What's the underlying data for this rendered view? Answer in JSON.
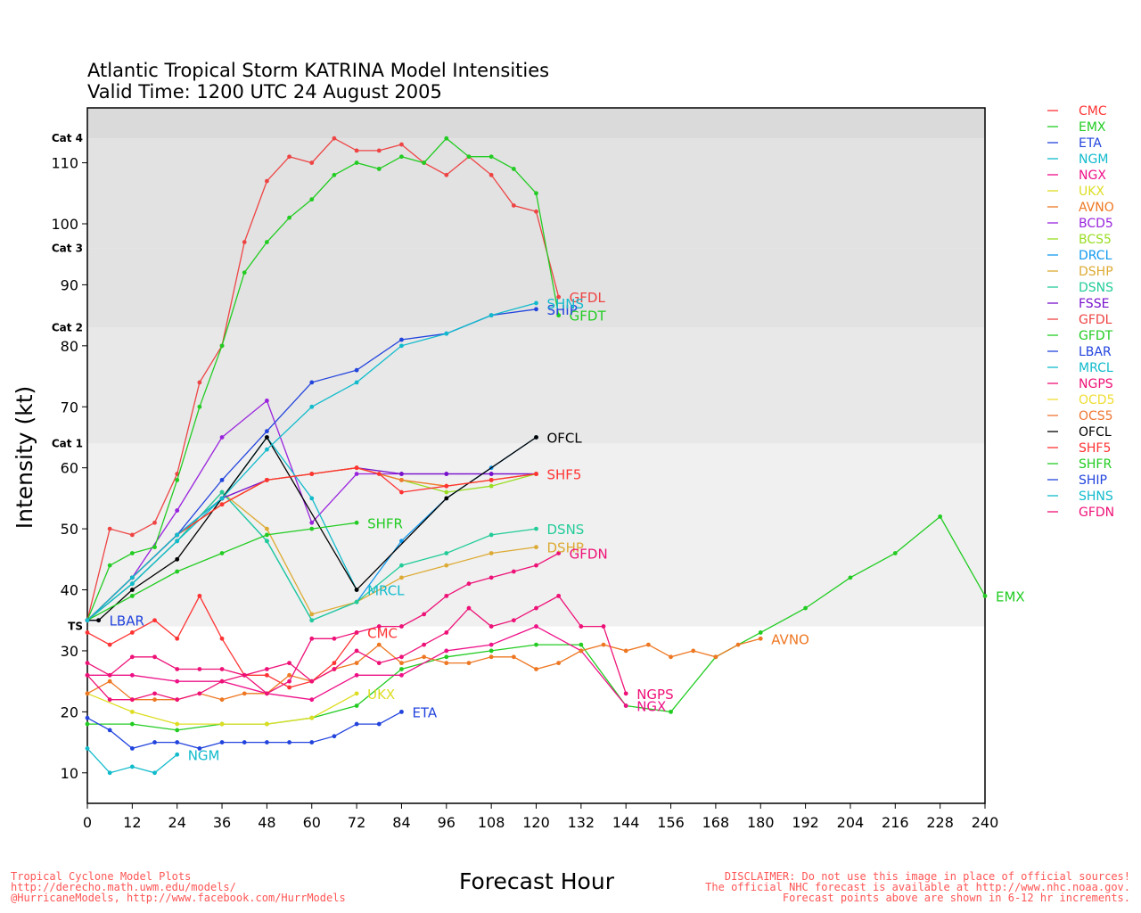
{
  "chart_data": {
    "type": "line",
    "title": "Atlantic Tropical Storm KATRINA Model Intensities",
    "subtitle": "Valid Time: 1200 UTC 24 August 2005",
    "xlabel": "Forecast Hour",
    "ylabel": "Intensity (kt)",
    "xlim": [
      0,
      240
    ],
    "ylim": [
      5,
      119
    ],
    "xticks": [
      0,
      12,
      24,
      36,
      48,
      60,
      72,
      84,
      96,
      108,
      120,
      132,
      144,
      156,
      168,
      180,
      192,
      204,
      216,
      228,
      240
    ],
    "yticks": [
      10,
      20,
      30,
      40,
      50,
      60,
      70,
      80,
      90,
      100,
      110
    ],
    "grid": false,
    "legend_position": "right",
    "categories": [
      {
        "label": "TS",
        "min": 34,
        "max": 64,
        "color": "#f0f0f0"
      },
      {
        "label": "Cat 1",
        "min": 64,
        "max": 83,
        "color": "#e8e8e8"
      },
      {
        "label": "Cat 2",
        "min": 83,
        "max": 96,
        "color": "#e2e2e2"
      },
      {
        "label": "Cat 3",
        "min": 96,
        "max": 114,
        "color": "#e2e2e2"
      },
      {
        "label": "Cat 4",
        "min": 114,
        "max": 119,
        "color": "#dadada"
      }
    ],
    "series": [
      {
        "name": "CMC",
        "color": "#ff3333",
        "x": [
          0,
          6,
          12,
          18,
          24,
          30,
          36,
          42,
          48,
          54,
          60,
          66,
          72
        ],
        "y": [
          33,
          31,
          33,
          35,
          32,
          39,
          32,
          26,
          26,
          24,
          25,
          28,
          33
        ],
        "label": "CMC"
      },
      {
        "name": "EMX",
        "color": "#22cc22",
        "x": [
          0,
          12,
          24,
          36,
          48,
          60,
          72,
          84,
          96,
          108,
          120,
          132,
          144,
          156,
          168,
          180,
          192,
          204,
          216,
          228,
          240
        ],
        "y": [
          18,
          18,
          17,
          18,
          18,
          19,
          21,
          27,
          29,
          30,
          31,
          31,
          21,
          20,
          29,
          33,
          37,
          42,
          46,
          52,
          39
        ],
        "label": "EMX"
      },
      {
        "name": "ETA",
        "color": "#2244dd",
        "x": [
          0,
          6,
          12,
          18,
          24,
          30,
          36,
          42,
          48,
          54,
          60,
          66,
          72,
          78,
          84
        ],
        "y": [
          19,
          17,
          14,
          15,
          15,
          14,
          15,
          15,
          15,
          15,
          15,
          16,
          18,
          18,
          20
        ],
        "label": "ETA"
      },
      {
        "name": "NGM",
        "color": "#11bbcc",
        "x": [
          0,
          6,
          12,
          18,
          24
        ],
        "y": [
          14,
          10,
          11,
          10,
          13
        ],
        "label": "NGM"
      },
      {
        "name": "NGX",
        "color": "#ee1188",
        "x": [
          0,
          12,
          24,
          36,
          48,
          60,
          72,
          84,
          96,
          108,
          120,
          132,
          144
        ],
        "y": [
          26,
          26,
          25,
          25,
          23,
          22,
          26,
          26,
          30,
          31,
          34,
          30,
          21
        ],
        "label": "NGX"
      },
      {
        "name": "UKX",
        "color": "#dddd22",
        "x": [
          0,
          12,
          24,
          36,
          48,
          60,
          72
        ],
        "y": [
          23,
          20,
          18,
          18,
          18,
          19,
          23
        ],
        "label": "UKX"
      },
      {
        "name": "AVNO",
        "color": "#ee7722",
        "x": [
          0,
          6,
          12,
          18,
          24,
          30,
          36,
          42,
          48,
          54,
          60,
          66,
          72,
          78,
          84,
          90,
          96,
          102,
          108,
          114,
          120,
          126,
          132,
          138,
          144,
          150,
          156,
          162,
          168,
          174,
          180
        ],
        "y": [
          23,
          25,
          22,
          22,
          22,
          23,
          22,
          23,
          23,
          26,
          25,
          27,
          28,
          31,
          28,
          29,
          28,
          28,
          29,
          29,
          27,
          28,
          30,
          31,
          30,
          31,
          29,
          30,
          29,
          31,
          32
        ],
        "label": "AVNO"
      },
      {
        "name": "BCD5",
        "color": "#9922dd",
        "x": [
          0,
          12,
          24,
          36,
          48,
          60,
          72,
          84,
          96,
          108,
          120
        ],
        "y": [
          35,
          42,
          53,
          65,
          71,
          51,
          59,
          59,
          59,
          59,
          59
        ],
        "label": ""
      },
      {
        "name": "BCS5",
        "color": "#99dd22",
        "x": [
          0,
          12,
          24,
          36,
          48,
          60,
          72,
          84,
          96,
          108,
          120
        ],
        "y": [
          35,
          42,
          49,
          54,
          58,
          59,
          60,
          58,
          56,
          57,
          59
        ],
        "label": ""
      },
      {
        "name": "DRCL",
        "color": "#1199ee",
        "x": [
          0,
          12,
          24,
          36,
          48,
          60,
          72,
          84,
          96,
          108,
          120
        ],
        "y": [
          35,
          41,
          48,
          56,
          48,
          35,
          38,
          48,
          55,
          60,
          65
        ],
        "label": ""
      },
      {
        "name": "DSHP",
        "color": "#ddaa33",
        "x": [
          0,
          12,
          24,
          36,
          48,
          60,
          72,
          84,
          96,
          108,
          120
        ],
        "y": [
          35,
          41,
          48,
          56,
          50,
          36,
          38,
          42,
          44,
          46,
          47
        ],
        "label": "DSHP"
      },
      {
        "name": "DSNS",
        "color": "#22cc99",
        "x": [
          0,
          12,
          24,
          36,
          48,
          60,
          72,
          84,
          96,
          108,
          120
        ],
        "y": [
          35,
          41,
          48,
          56,
          48,
          35,
          38,
          44,
          46,
          49,
          50
        ],
        "label": "DSNS"
      },
      {
        "name": "FSSE",
        "color": "#7711cc",
        "x": [
          0,
          12,
          24,
          36,
          48,
          60,
          72,
          84,
          96,
          108,
          120
        ],
        "y": [
          35,
          42,
          49,
          55,
          58,
          59,
          60,
          59,
          59,
          59,
          59
        ],
        "label": ""
      },
      {
        "name": "GFDL",
        "color": "#ee4444",
        "x": [
          0,
          6,
          12,
          18,
          24,
          30,
          36,
          42,
          48,
          54,
          60,
          66,
          72,
          78,
          84,
          90,
          96,
          102,
          108,
          114,
          120,
          126
        ],
        "y": [
          35,
          50,
          49,
          51,
          59,
          74,
          80,
          97,
          107,
          111,
          110,
          114,
          112,
          112,
          113,
          110,
          108,
          111,
          108,
          103,
          102,
          88
        ],
        "label": "GFDL"
      },
      {
        "name": "GFDT",
        "color": "#22cc22",
        "x": [
          0,
          6,
          12,
          18,
          24,
          30,
          36,
          42,
          48,
          54,
          60,
          66,
          72,
          78,
          84,
          90,
          96,
          102,
          108,
          114,
          120,
          126
        ],
        "y": [
          35,
          44,
          46,
          47,
          58,
          70,
          80,
          92,
          97,
          101,
          104,
          108,
          110,
          109,
          111,
          110,
          114,
          111,
          111,
          109,
          105,
          85
        ],
        "label": "GFDT"
      },
      {
        "name": "LBAR",
        "color": "#2244dd",
        "x": [
          0,
          3
        ],
        "y": [
          35,
          35
        ],
        "label": "LBAR"
      },
      {
        "name": "MRCL",
        "color": "#11bbcc",
        "x": [
          0,
          12,
          24,
          36,
          48,
          60,
          72
        ],
        "y": [
          35,
          41,
          48,
          55,
          65,
          55,
          40
        ],
        "label": "MRCL"
      },
      {
        "name": "NGPS",
        "color": "#ee1177",
        "x": [
          0,
          6,
          12,
          18,
          24,
          30,
          36,
          42,
          48,
          54,
          60,
          66,
          72,
          78,
          84,
          90,
          96,
          102,
          108,
          114,
          120,
          126,
          132,
          138,
          144
        ],
        "y": [
          28,
          26,
          29,
          29,
          27,
          27,
          27,
          26,
          27,
          28,
          25,
          27,
          30,
          28,
          29,
          31,
          33,
          37,
          34,
          35,
          37,
          39,
          34,
          34,
          23
        ],
        "label": "NGPS"
      },
      {
        "name": "OCD5",
        "color": "#eedd33",
        "x": [
          0,
          12,
          24,
          36,
          48,
          60,
          72,
          84,
          96,
          108,
          120
        ],
        "y": [
          35,
          42,
          49,
          54,
          58,
          59,
          60,
          58,
          57,
          58,
          59
        ],
        "label": ""
      },
      {
        "name": "OCS5",
        "color": "#ee7733",
        "x": [
          0,
          12,
          24,
          36,
          48,
          60,
          72,
          84,
          96,
          108,
          120
        ],
        "y": [
          35,
          42,
          49,
          54,
          58,
          59,
          60,
          58,
          57,
          58,
          59
        ],
        "label": ""
      },
      {
        "name": "OFCL",
        "color": "#000000",
        "x": [
          0,
          3,
          12,
          24,
          36,
          48,
          72,
          96,
          120
        ],
        "y": [
          35,
          35,
          40,
          45,
          55,
          65,
          40,
          55,
          65
        ],
        "label": "OFCL"
      },
      {
        "name": "SHF5",
        "color": "#ff3333",
        "x": [
          0,
          12,
          24,
          36,
          48,
          60,
          72,
          78,
          84,
          96,
          108,
          120
        ],
        "y": [
          35,
          42,
          49,
          54,
          58,
          59,
          60,
          59,
          56,
          57,
          58,
          59
        ],
        "label": ""
      },
      {
        "name": "SHFR",
        "color": "#22cc22",
        "x": [
          0,
          12,
          24,
          36,
          48,
          60,
          72
        ],
        "y": [
          35,
          39,
          43,
          46,
          49,
          50,
          51
        ],
        "label": "SHFR"
      },
      {
        "name": "SHIP",
        "color": "#2244dd",
        "x": [
          0,
          12,
          24,
          36,
          48,
          60,
          72,
          84,
          96,
          108,
          120
        ],
        "y": [
          35,
          42,
          49,
          58,
          66,
          74,
          76,
          81,
          82,
          85,
          86
        ],
        "label": "SHIP"
      },
      {
        "name": "SHNS",
        "color": "#11bbcc",
        "x": [
          0,
          12,
          24,
          36,
          48,
          60,
          72,
          84,
          96,
          108,
          120
        ],
        "y": [
          35,
          42,
          49,
          55,
          63,
          70,
          74,
          80,
          82,
          85,
          87
        ],
        "label": "SHNS"
      },
      {
        "name": "GFDN",
        "color": "#ee1177",
        "x": [
          0,
          6,
          12,
          18,
          24,
          30,
          36,
          42,
          48,
          54,
          60,
          66,
          72,
          78,
          84,
          90,
          96,
          102,
          108,
          114,
          120,
          126
        ],
        "y": [
          26,
          22,
          22,
          23,
          22,
          23,
          25,
          26,
          23,
          25,
          32,
          32,
          33,
          34,
          34,
          36,
          39,
          41,
          42,
          43,
          44,
          46
        ],
        "label": "GFDN"
      }
    ],
    "overlap_label": "SHF5"
  },
  "footer": {
    "left": [
      "Tropical Cyclone Model Plots",
      "http://derecho.math.uwm.edu/models/",
      "@HurricaneModels, http://www.facebook.com/HurrModels"
    ],
    "right": [
      "DISCLAIMER: Do not use this image in place of official sources!",
      "The official NHC forecast is available at http://www.nhc.noaa.gov.",
      "Forecast points above are shown in 6-12 hr increments."
    ]
  }
}
